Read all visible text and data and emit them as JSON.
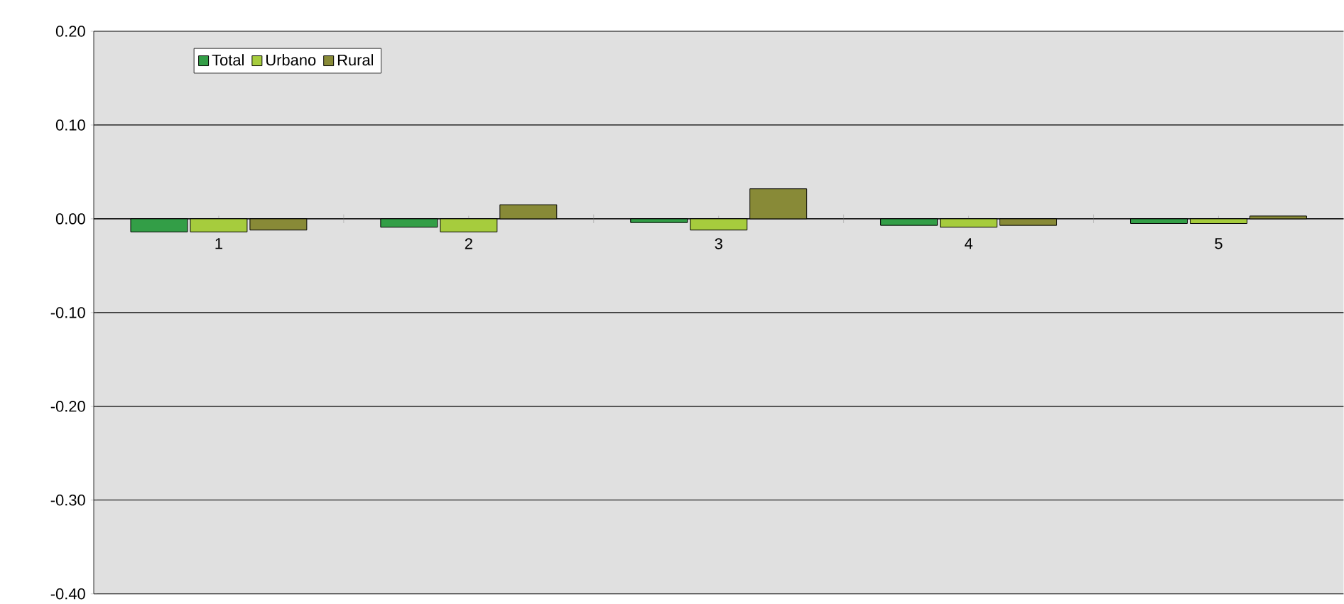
{
  "chart_data": {
    "type": "bar",
    "categories": [
      "1",
      "2",
      "3",
      "4",
      "5"
    ],
    "series": [
      {
        "name": "Total",
        "color": "#339e47",
        "values": [
          -0.014,
          -0.009,
          -0.004,
          -0.007,
          -0.005
        ]
      },
      {
        "name": "Urbano",
        "color": "#a6cc3d",
        "values": [
          -0.014,
          -0.014,
          -0.012,
          -0.009,
          -0.005
        ]
      },
      {
        "name": "Rural",
        "color": "#888a37",
        "values": [
          -0.012,
          0.015,
          0.032,
          -0.007,
          0.003
        ]
      }
    ],
    "ylim": [
      -0.4,
      0.2
    ],
    "yticks": [
      {
        "value": -0.4,
        "label": "-0.40"
      },
      {
        "value": -0.3,
        "label": "-0.30"
      },
      {
        "value": -0.2,
        "label": "-0.20"
      },
      {
        "value": -0.1,
        "label": "-0.10"
      },
      {
        "value": 0,
        "label": "0.00"
      },
      {
        "value": 0.1,
        "label": "0.10"
      },
      {
        "value": 0.2,
        "label": "0.20"
      }
    ],
    "grid": "y",
    "legend": "top left"
  }
}
